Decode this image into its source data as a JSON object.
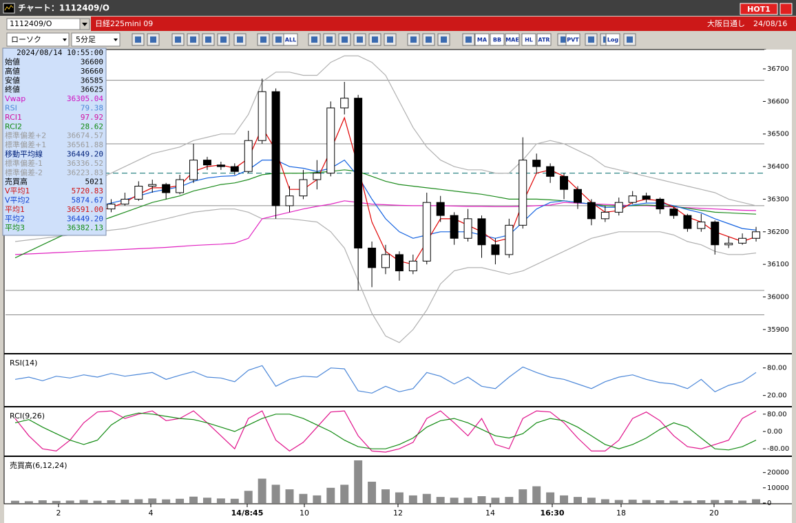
{
  "window": {
    "title": "チャート：1112409/O",
    "hot": "HOT1"
  },
  "toolbar": {
    "symbol": "1112409/O",
    "name": "日経225mini 09",
    "exchange": "大阪日通し",
    "date": "24/08/16",
    "chart_type": "ローソク",
    "interval": "5分足",
    "buttons": [
      "ALL",
      "MA",
      "BB",
      "MAE",
      "HL",
      "ATR",
      "PVT",
      "Log"
    ]
  },
  "info_panel": {
    "datetime": "2024/08/14 10:55:00",
    "rows": [
      {
        "label": "始値",
        "value": "36600",
        "color": "#000000"
      },
      {
        "label": "高値",
        "value": "36660",
        "color": "#000000"
      },
      {
        "label": "安値",
        "value": "36585",
        "color": "#000000"
      },
      {
        "label": "終値",
        "value": "36625",
        "color": "#000000"
      },
      {
        "label": "Vwap",
        "value": "36305.04",
        "color": "#d010c0"
      },
      {
        "label": "RSI",
        "value": "79.38",
        "color": "#4a86d8"
      },
      {
        "label": "RCI1",
        "value": "97.92",
        "color": "#d010a0"
      },
      {
        "label": "RCI2",
        "value": "28.62",
        "color": "#108a10"
      },
      {
        "label": "標準偏差+2",
        "value": "36674.57",
        "color": "#9a9a9a"
      },
      {
        "label": "標準偏差+1",
        "value": "36561.88",
        "color": "#9a9a9a"
      },
      {
        "label": "移動平均線",
        "value": "36449.20",
        "color": "#00207a"
      },
      {
        "label": "標準偏差-1",
        "value": "36336.52",
        "color": "#9a9a9a"
      },
      {
        "label": "標準偏差-2",
        "value": "36223.83",
        "color": "#9a9a9a"
      },
      {
        "label": "売買高",
        "value": "5021",
        "color": "#000000"
      },
      {
        "label": "V平均1",
        "value": "5720.83",
        "color": "#d01010"
      },
      {
        "label": "V平均2",
        "value": "5874.67",
        "color": "#1040d0"
      },
      {
        "label": "平均1",
        "value": "36591.00",
        "color": "#d01010"
      },
      {
        "label": "平均2",
        "value": "36449.20",
        "color": "#1040d0"
      },
      {
        "label": "平均3",
        "value": "36382.13",
        "color": "#108a10"
      }
    ]
  },
  "time_axis": {
    "labels": [
      "2",
      "4",
      "14/8:45",
      "10",
      "12",
      "14",
      "16:30",
      "18",
      "20"
    ]
  },
  "chart_data": [
    {
      "type": "candlestick",
      "ylim": [
        35830,
        36755
      ],
      "yticks": [
        35900,
        36000,
        36100,
        36200,
        36300,
        36400,
        36500,
        36600,
        36700
      ],
      "up_color": "#ffffff",
      "down_color": "#000000",
      "open": [
        36205,
        36215,
        36225,
        36220,
        36240,
        36245,
        36260,
        36270,
        36285,
        36300,
        36340,
        36345,
        36320,
        36360,
        36420,
        36405,
        36400,
        36385,
        36480,
        36630,
        36280,
        36310,
        36360,
        36380,
        36580,
        36610,
        36150,
        36090,
        36130,
        36080,
        36110,
        36290,
        36250,
        36180,
        36240,
        36160,
        36130,
        36220,
        36420,
        36400,
        36370,
        36330,
        36290,
        36240,
        36260,
        36290,
        36310,
        36300,
        36270,
        36250,
        36210,
        36230,
        36160,
        36165,
        36180
      ],
      "high": [
        36230,
        36240,
        36235,
        36255,
        36260,
        36275,
        36285,
        36300,
        36320,
        36355,
        36360,
        36350,
        36375,
        36470,
        36430,
        36415,
        36410,
        36510,
        36670,
        36640,
        36340,
        36390,
        36420,
        36600,
        36660,
        36620,
        36170,
        36160,
        36140,
        36130,
        36320,
        36310,
        36260,
        36270,
        36250,
        36180,
        36240,
        36490,
        36440,
        36410,
        36380,
        36340,
        36300,
        36280,
        36305,
        36325,
        36320,
        36305,
        36275,
        36255,
        36255,
        36235,
        36185,
        36195,
        36215
      ],
      "low": [
        36195,
        36205,
        36205,
        36210,
        36230,
        36235,
        36250,
        36260,
        36280,
        36295,
        36320,
        36300,
        36315,
        36350,
        36390,
        36390,
        36375,
        36380,
        36470,
        36240,
        36260,
        36300,
        36330,
        36370,
        36560,
        36020,
        36030,
        36070,
        36050,
        36070,
        36100,
        36230,
        36160,
        36170,
        36120,
        36100,
        36120,
        36210,
        36380,
        36350,
        36300,
        36270,
        36220,
        36230,
        36250,
        36285,
        36290,
        36255,
        36240,
        36200,
        36200,
        36130,
        36150,
        36160,
        36170
      ],
      "close": [
        36215,
        36225,
        36220,
        36240,
        36245,
        36260,
        36270,
        36285,
        36300,
        36340,
        36345,
        36320,
        36360,
        36420,
        36405,
        36400,
        36385,
        36480,
        36630,
        36280,
        36310,
        36360,
        36380,
        36580,
        36610,
        36150,
        36090,
        36130,
        36080,
        36110,
        36290,
        36250,
        36180,
        36240,
        36160,
        36130,
        36220,
        36420,
        36400,
        36370,
        36330,
        36290,
        36240,
        36260,
        36290,
        36310,
        36300,
        36270,
        36250,
        36210,
        36230,
        36160,
        36165,
        36180,
        36200
      ],
      "hlines": [
        36665,
        36470,
        36280,
        36020,
        35945
      ],
      "hline_color": "#8a8a8a",
      "dashed_line": 36380,
      "dashed_color": "#1a7a7a",
      "series": [
        {
          "name": "標準偏差+2",
          "color": "#b0b0b0",
          "values": [
            36290,
            36295,
            36300,
            36310,
            36320,
            36340,
            36360,
            36380,
            36400,
            36420,
            36440,
            36450,
            36460,
            36480,
            36490,
            36500,
            36500,
            36560,
            36660,
            36690,
            36690,
            36680,
            36680,
            36720,
            36740,
            36740,
            36720,
            36680,
            36600,
            36520,
            36460,
            36420,
            36400,
            36390,
            36390,
            36380,
            36380,
            36420,
            36470,
            36480,
            36470,
            36450,
            36430,
            36400,
            36390,
            36380,
            36370,
            36360,
            36350,
            36340,
            36330,
            36320,
            36300,
            36290,
            36280
          ]
        },
        {
          "name": "標準偏差-2",
          "color": "#b0b0b0",
          "values": [
            36170,
            36175,
            36180,
            36185,
            36190,
            36195,
            36200,
            36205,
            36210,
            36220,
            36230,
            36240,
            36250,
            36260,
            36265,
            36270,
            36270,
            36260,
            36240,
            36240,
            36240,
            36235,
            36230,
            36200,
            36150,
            36050,
            35950,
            35880,
            35860,
            35900,
            35960,
            36040,
            36080,
            36090,
            36090,
            36080,
            36070,
            36080,
            36100,
            36120,
            36140,
            36160,
            36180,
            36190,
            36200,
            36200,
            36200,
            36200,
            36190,
            36170,
            36160,
            36140,
            36130,
            36130,
            36135
          ]
        },
        {
          "name": "Vwap",
          "color": "#e020c0",
          "values": [
            36130,
            36132,
            36134,
            36136,
            36138,
            36140,
            36142,
            36144,
            36146,
            36148,
            36150,
            36152,
            36155,
            36158,
            36160,
            36162,
            36165,
            36180,
            36240,
            36250,
            36260,
            36270,
            36278,
            36285,
            36295,
            36290,
            36285,
            36283,
            36281,
            36280,
            36280,
            36280,
            36279,
            36278,
            36278,
            36277,
            36277,
            36278,
            36280,
            36282,
            36290,
            36288,
            36286,
            36284,
            36282,
            36280,
            36280,
            36278,
            36276,
            36274,
            36272,
            36270,
            36268,
            36266,
            36265
          ]
        },
        {
          "name": "平均3",
          "color": "#1a8a1a",
          "values": [
            36120,
            36140,
            36160,
            36180,
            36200,
            36215,
            36230,
            36245,
            36260,
            36275,
            36290,
            36300,
            36310,
            36325,
            36335,
            36345,
            36350,
            36360,
            36375,
            36380,
            36380,
            36380,
            36382,
            36385,
            36390,
            36385,
            36370,
            36355,
            36345,
            36340,
            36335,
            36330,
            36325,
            36320,
            36315,
            36308,
            36300,
            36300,
            36300,
            36298,
            36295,
            36290,
            36285,
            36280,
            36278,
            36280,
            36282,
            36280,
            36278,
            36272,
            36266,
            36260,
            36258,
            36256,
            36254
          ]
        },
        {
          "name": "平均2",
          "color": "#1060e0",
          "values": [
            36240,
            36245,
            36250,
            36255,
            36262,
            36270,
            36278,
            36288,
            36298,
            36310,
            36322,
            36330,
            36338,
            36355,
            36365,
            36370,
            36372,
            36390,
            36420,
            36420,
            36400,
            36395,
            36385,
            36395,
            36420,
            36370,
            36300,
            36240,
            36200,
            36180,
            36190,
            36200,
            36200,
            36200,
            36190,
            36180,
            36190,
            36230,
            36270,
            36290,
            36295,
            36290,
            36285,
            36275,
            36275,
            36282,
            36288,
            36288,
            36280,
            36268,
            36258,
            36240,
            36225,
            36210,
            36205
          ]
        },
        {
          "name": "平均1",
          "color": "#e00000",
          "values": [
            36210,
            36218,
            36220,
            36228,
            36238,
            36250,
            36262,
            36275,
            36290,
            36315,
            36335,
            36335,
            36342,
            36385,
            36400,
            36405,
            36395,
            36425,
            36520,
            36450,
            36330,
            36330,
            36360,
            36450,
            36550,
            36400,
            36230,
            36140,
            36110,
            36100,
            36170,
            36240,
            36240,
            36220,
            36200,
            36170,
            36180,
            36290,
            36380,
            36390,
            36370,
            36330,
            36290,
            36260,
            36265,
            36290,
            36300,
            36295,
            36275,
            36245,
            36230,
            36200,
            36185,
            36170,
            36185
          ]
        }
      ]
    },
    {
      "type": "line",
      "title": "RSI(14)",
      "ylim": [
        -3,
        108
      ],
      "yticks": [
        {
          "value": 20,
          "label": "20.00"
        },
        {
          "value": 80,
          "label": "80.00"
        }
      ],
      "series": [
        {
          "name": "RSI",
          "color": "#4a86d8",
          "values": [
            55,
            60,
            52,
            62,
            58,
            65,
            60,
            68,
            62,
            66,
            70,
            55,
            64,
            72,
            60,
            58,
            50,
            75,
            85,
            40,
            55,
            62,
            60,
            80,
            78,
            30,
            25,
            40,
            28,
            35,
            70,
            62,
            45,
            60,
            40,
            35,
            60,
            82,
            70,
            60,
            55,
            45,
            35,
            50,
            60,
            65,
            55,
            48,
            45,
            35,
            55,
            28,
            42,
            50,
            70
          ]
        }
      ]
    },
    {
      "type": "line",
      "title": "RCI(9,26)",
      "ylim": [
        -111,
        108
      ],
      "yticks": [
        {
          "value": 80,
          "label": "80.00"
        },
        {
          "value": 0,
          "label": "0.00"
        },
        {
          "value": -80,
          "label": "-80.00"
        }
      ],
      "series": [
        {
          "name": "RCI1",
          "color": "#e0108a",
          "values": [
            60,
            -20,
            -80,
            -90,
            -40,
            40,
            90,
            95,
            60,
            80,
            95,
            50,
            60,
            95,
            40,
            -20,
            -80,
            60,
            95,
            -40,
            -90,
            -50,
            20,
            90,
            95,
            -20,
            -90,
            -95,
            -80,
            -50,
            60,
            95,
            40,
            -20,
            60,
            -60,
            -80,
            60,
            95,
            90,
            40,
            -30,
            -90,
            -90,
            -40,
            60,
            90,
            50,
            -20,
            -70,
            -80,
            -60,
            -40,
            60,
            95
          ]
        },
        {
          "name": "RCI2",
          "color": "#108a10",
          "values": [
            40,
            55,
            20,
            -10,
            -40,
            -60,
            -40,
            30,
            70,
            85,
            80,
            70,
            60,
            55,
            40,
            20,
            0,
            30,
            60,
            80,
            80,
            60,
            30,
            0,
            -40,
            -70,
            -80,
            -80,
            -60,
            -30,
            20,
            50,
            60,
            40,
            10,
            -20,
            -30,
            -10,
            40,
            60,
            50,
            20,
            -20,
            -60,
            -80,
            -60,
            -30,
            10,
            40,
            20,
            -30,
            -80,
            -85,
            -70,
            -40
          ]
        }
      ]
    },
    {
      "type": "bar",
      "title": "売買高(6,12,24)",
      "ylim": [
        0,
        29800
      ],
      "yticks": [
        0,
        10000,
        20000
      ],
      "color": "#8c8c8c",
      "values": [
        1500,
        1200,
        1800,
        1400,
        1600,
        2000,
        1500,
        1800,
        2200,
        2500,
        3000,
        2400,
        2800,
        4200,
        3500,
        3000,
        2800,
        8000,
        16000,
        12000,
        9000,
        6000,
        5000,
        10000,
        12000,
        28000,
        14000,
        9000,
        7000,
        5000,
        6000,
        4000,
        3500,
        3500,
        4500,
        3500,
        4000,
        9000,
        11000,
        7000,
        5000,
        4000,
        3500,
        2500,
        2000,
        2200,
        2000,
        1800,
        1600,
        1500,
        1800,
        2000,
        1800,
        1600,
        2500
      ]
    }
  ]
}
